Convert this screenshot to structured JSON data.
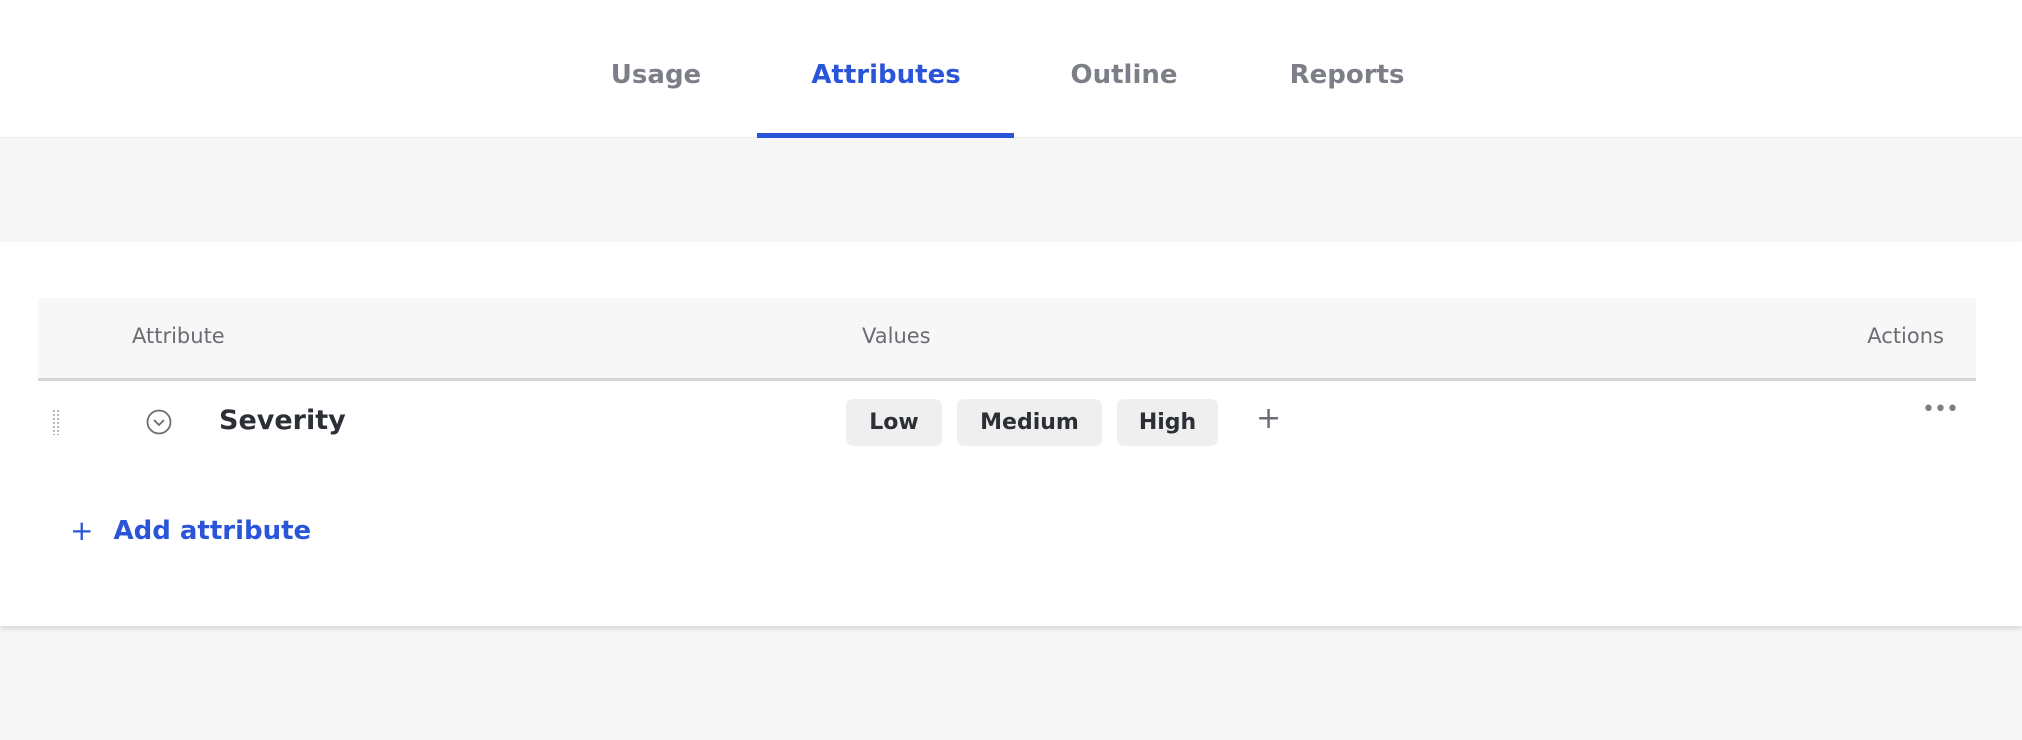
{
  "tabs": [
    {
      "label": "Usage",
      "active": false
    },
    {
      "label": "Attributes",
      "active": true
    },
    {
      "label": "Outline",
      "active": false
    },
    {
      "label": "Reports",
      "active": false
    }
  ],
  "accent_color": "#2a55d9",
  "table": {
    "headers": {
      "attribute": "Attribute",
      "values": "Values",
      "actions": "Actions"
    },
    "rows": [
      {
        "name": "Severity",
        "expand_icon": "chevron-down-circle-icon",
        "values": [
          "Low",
          "Medium",
          "High"
        ],
        "add_value_label": "+",
        "actions_icon": "more-horizontal-icon",
        "actions_label": "•••"
      }
    ]
  },
  "add_attribute": {
    "icon": "+",
    "label": "Add attribute"
  }
}
